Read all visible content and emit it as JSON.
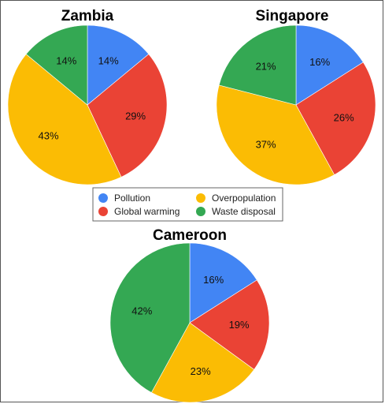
{
  "legend": [
    {
      "label": "Pollution",
      "color": "#4285F4"
    },
    {
      "label": "Global warming",
      "color": "#EA4335"
    },
    {
      "label": "Overpopulation",
      "color": "#FBBC04"
    },
    {
      "label": "Waste disposal",
      "color": "#34A853"
    }
  ],
  "chart_data": [
    {
      "type": "pie",
      "title": "Zambia",
      "categories": [
        "Pollution",
        "Global warming",
        "Overpopulation",
        "Waste disposal"
      ],
      "values": [
        14,
        29,
        43,
        14
      ],
      "labels": [
        "14%",
        "29%",
        "43%",
        "14%"
      ]
    },
    {
      "type": "pie",
      "title": "Singapore",
      "categories": [
        "Pollution",
        "Global warming",
        "Overpopulation",
        "Waste disposal"
      ],
      "values": [
        16,
        26,
        37,
        21
      ],
      "labels": [
        "16%",
        "26%",
        "37%",
        "21%"
      ]
    },
    {
      "type": "pie",
      "title": "Cameroon",
      "categories": [
        "Pollution",
        "Global warming",
        "Overpopulation",
        "Waste disposal"
      ],
      "values": [
        16,
        19,
        23,
        42
      ],
      "labels": [
        "16%",
        "19%",
        "23%",
        "42%"
      ]
    }
  ]
}
